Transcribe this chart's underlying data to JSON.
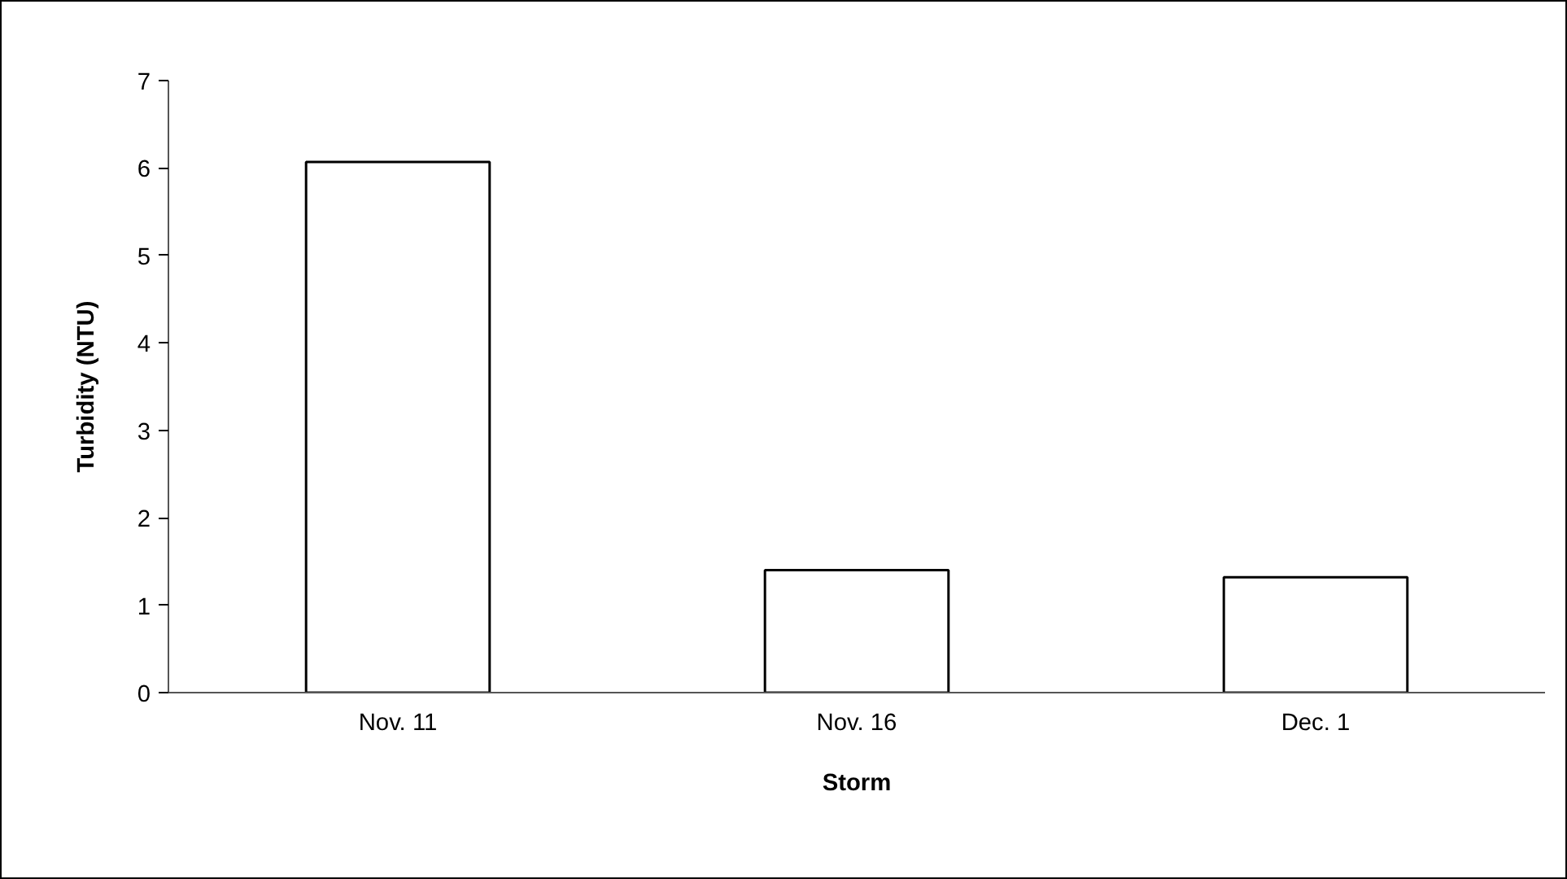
{
  "chart_data": {
    "type": "bar",
    "xlabel": "Storm",
    "ylabel": "Turbidity (NTU)",
    "categories": [
      "Nov. 11",
      "Nov. 16",
      "Dec. 1"
    ],
    "values": [
      6.07,
      1.4,
      1.32
    ],
    "color": "#ffffff",
    "ylim": [
      0,
      7
    ],
    "yticks": [
      0,
      1,
      2,
      3,
      4,
      5,
      6,
      7
    ],
    "grid": false
  }
}
